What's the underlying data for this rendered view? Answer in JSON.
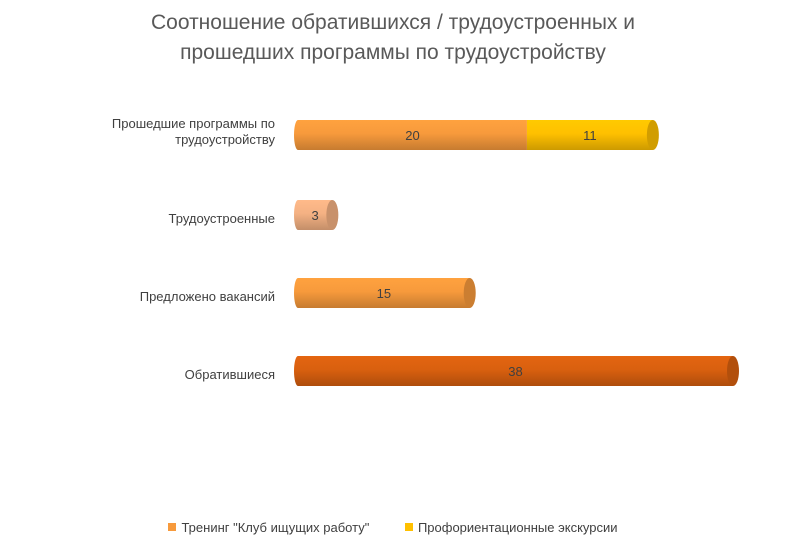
{
  "chart_data": {
    "type": "bar",
    "orientation": "horizontal",
    "title_lines": [
      "Соотношение обратившихся / трудоустроенных и",
      "прошедших программы по трудоустройству"
    ],
    "categories": [
      [
        "Прошедшие программы по",
        "трудоустройству"
      ],
      [
        "Трудоустроенные"
      ],
      [
        "Предложено вакансий"
      ],
      [
        "Обратившиеся"
      ]
    ],
    "segments": [
      [
        {
          "value": 20,
          "label": "20",
          "color": "#F79A3C"
        },
        {
          "value": 11,
          "label": "11",
          "color": "#FFC000"
        }
      ],
      [
        {
          "value": 3,
          "label": "3",
          "color": "#F4B183"
        }
      ],
      [
        {
          "value": 15,
          "label": "15",
          "color": "#F79A3C"
        }
      ],
      [
        {
          "value": 38,
          "label": "38",
          "color": "#D9600F"
        }
      ]
    ],
    "xlim": [
      0,
      38
    ],
    "grid": false,
    "legend_position": "bottom",
    "legend": [
      {
        "name": "Тренинг \"Клуб ищущих работу\"",
        "color": "#F79A3C"
      },
      {
        "name": "Профориентационные экскурсии",
        "color": "#FFC000"
      }
    ]
  }
}
